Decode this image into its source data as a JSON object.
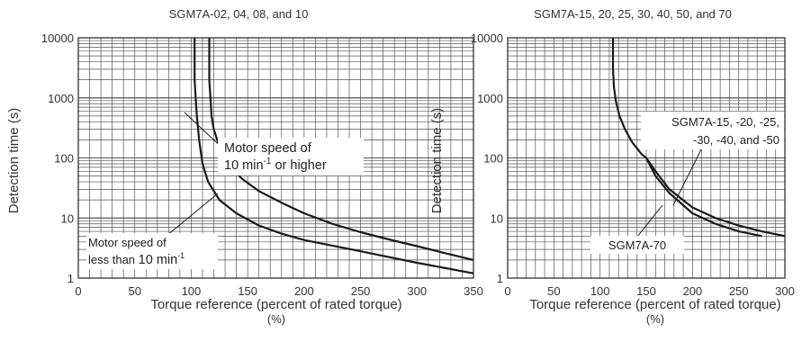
{
  "chart_data": [
    {
      "type": "line",
      "title": "SGM7A-02, 04, 08, and 10",
      "xlabel": "Torque reference (percent of rated torque)",
      "xlabel_unit": "(%)",
      "ylabel": "Detection time (s)",
      "yscale": "log",
      "xlim": [
        0,
        350
      ],
      "ylim": [
        1,
        10000
      ],
      "x_ticks": [
        "0",
        "50",
        "100",
        "150",
        "200",
        "250",
        "300",
        "350"
      ],
      "y_ticks": [
        "1",
        "10",
        "100",
        "1000",
        "10000"
      ],
      "grid": true,
      "series": [
        {
          "points": [
            [
              116,
              10000
            ],
            [
              116,
              2000
            ],
            [
              117,
              1000
            ],
            [
              118,
              500
            ],
            [
              120,
              300
            ],
            [
              123,
              200
            ],
            [
              128,
              120
            ],
            [
              135,
              70
            ],
            [
              145,
              45
            ],
            [
              160,
              28
            ],
            [
              180,
              18
            ],
            [
              200,
              12
            ],
            [
              225,
              8
            ],
            [
              250,
              5.8
            ],
            [
              275,
              4.4
            ],
            [
              300,
              3.4
            ],
            [
              325,
              2.6
            ],
            [
              350,
              2.0
            ]
          ]
        },
        {
          "points": [
            [
              103,
              10000
            ],
            [
              103,
              2000
            ],
            [
              104,
              1000
            ],
            [
              105,
              500
            ],
            [
              107,
              200
            ],
            [
              110,
              80
            ],
            [
              115,
              40
            ],
            [
              125,
              20
            ],
            [
              140,
              12
            ],
            [
              160,
              7.5
            ],
            [
              180,
              5.5
            ],
            [
              200,
              4.3
            ],
            [
              250,
              2.8
            ],
            [
              300,
              1.8
            ],
            [
              350,
              1.2
            ]
          ]
        }
      ],
      "annotations": {
        "upper_line1": "Motor speed of",
        "upper_line2a": "10 min",
        "upper_sup": "-1",
        "upper_line2b": " or higher",
        "lower_line1": "Motor speed of",
        "lower_line2a": "less than ",
        "lower_line2b": "10 min",
        "lower_sup": "-1"
      }
    },
    {
      "type": "line",
      "title": "SGM7A-15, 20, 25, 30, 40, 50, and 70",
      "xlabel": "Torque reference (percent of rated torque)",
      "xlabel_unit": "(%)",
      "ylabel": "Detection time (s)",
      "yscale": "log",
      "xlim": [
        0,
        300
      ],
      "ylim": [
        1,
        10000
      ],
      "x_ticks": [
        "0",
        "50",
        "100",
        "150",
        "200",
        "250",
        "300"
      ],
      "y_ticks": [
        "1",
        "10",
        "100",
        "1000",
        "10000"
      ],
      "grid": true,
      "series": [
        {
          "points": [
            [
              114,
              10000
            ],
            [
              114,
              3000
            ],
            [
              115,
              1500
            ],
            [
              117,
              900
            ],
            [
              121,
              500
            ],
            [
              127,
              300
            ],
            [
              135,
              180
            ],
            [
              145,
              115
            ],
            [
              150,
              100
            ],
            [
              160,
              60
            ],
            [
              175,
              30
            ],
            [
              200,
              15
            ],
            [
              225,
              10
            ],
            [
              250,
              7.5
            ],
            [
              275,
              6
            ],
            [
              300,
              5
            ]
          ]
        },
        {
          "points": [
            [
              150,
              100
            ],
            [
              160,
              50
            ],
            [
              175,
              26
            ],
            [
              200,
              12
            ],
            [
              225,
              8
            ],
            [
              250,
              6
            ],
            [
              275,
              5
            ]
          ]
        }
      ],
      "annotations": {
        "upper_line1": "SGM7A-15, -20, -25,",
        "upper_line2": "-30, -40, and -50",
        "lower": "SGM7A-70"
      }
    }
  ]
}
